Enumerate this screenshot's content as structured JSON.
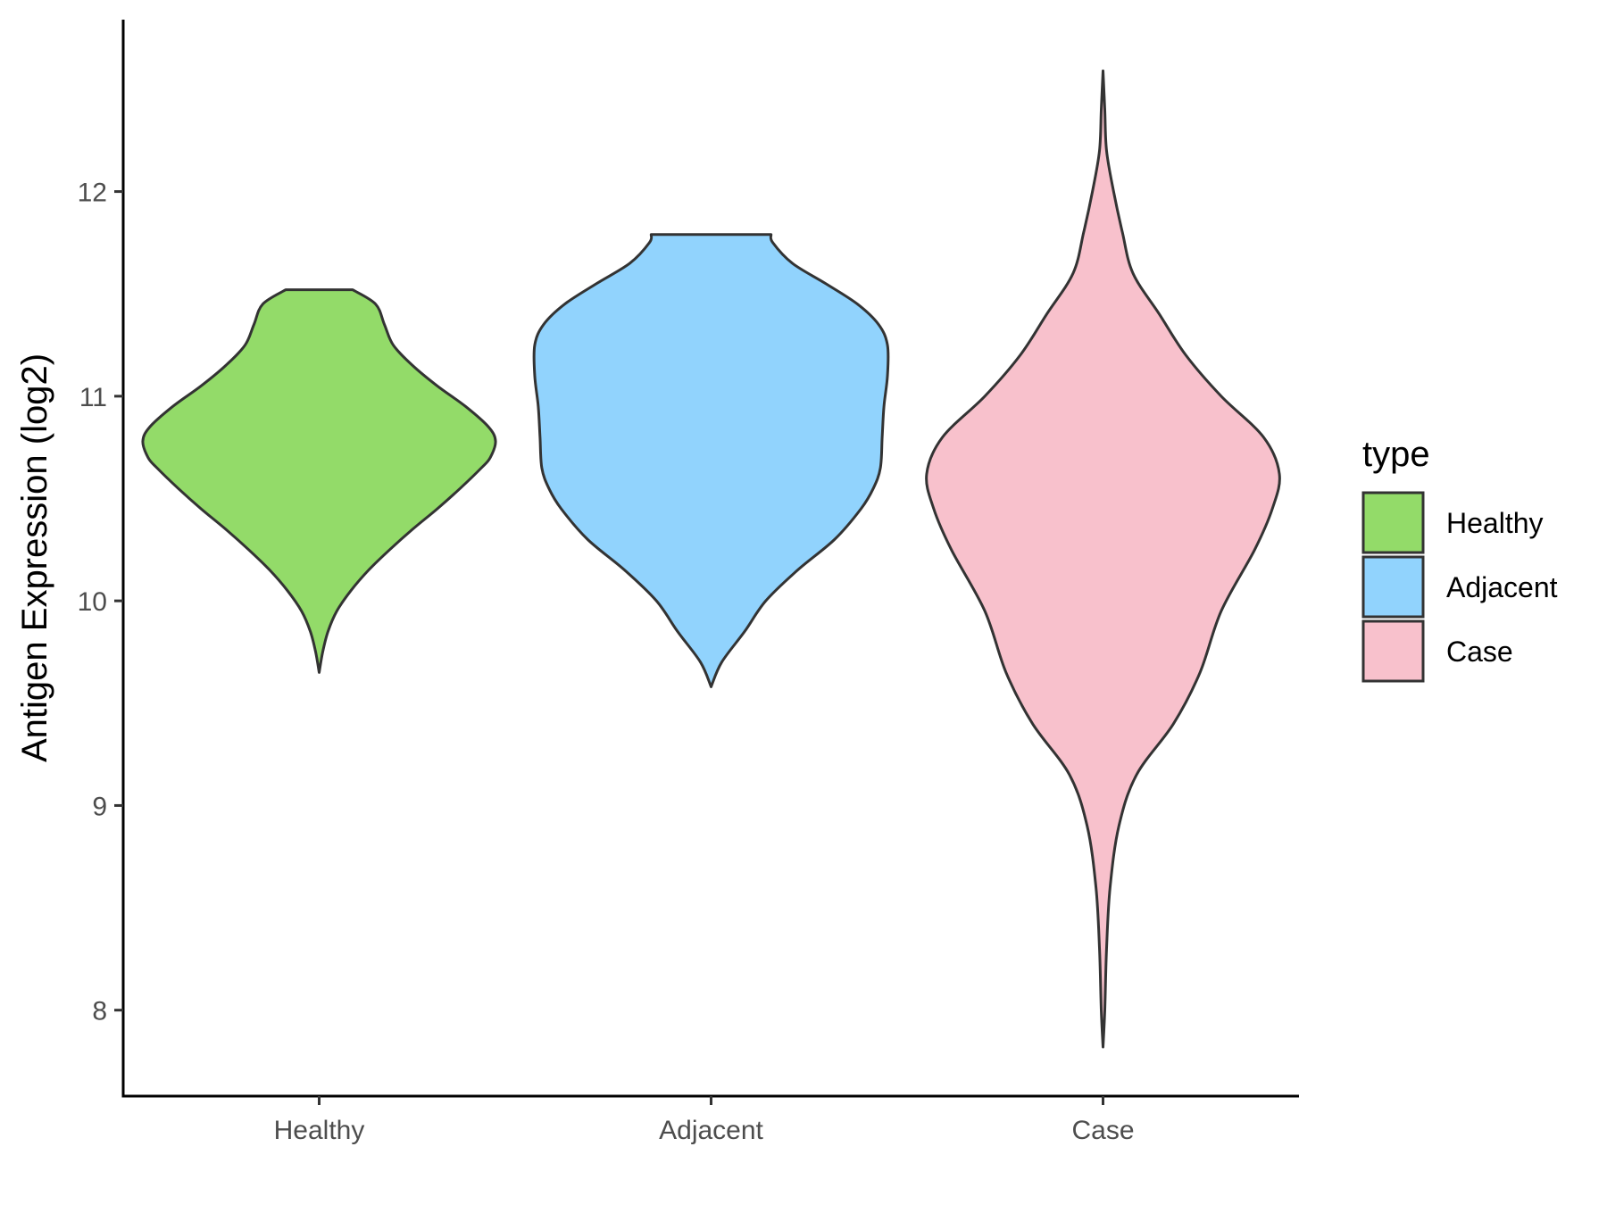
{
  "chart_data": {
    "type": "violin",
    "ylabel": "Antigen Expression (log2)",
    "xlabel": "",
    "categories": [
      "Healthy",
      "Adjacent",
      "Case"
    ],
    "y_ticks": [
      8,
      9,
      10,
      11,
      12
    ],
    "ylim": [
      7.58,
      12.84
    ],
    "grid": false,
    "legend": {
      "title": "type",
      "position": "right",
      "entries": [
        "Healthy",
        "Adjacent",
        "Case"
      ]
    },
    "series": [
      {
        "name": "Healthy",
        "color": "#93db69",
        "min": 9.65,
        "max": 11.52,
        "density": [
          [
            9.65,
            0.0
          ],
          [
            9.75,
            0.02
          ],
          [
            9.85,
            0.05
          ],
          [
            9.95,
            0.1
          ],
          [
            10.05,
            0.18
          ],
          [
            10.15,
            0.28
          ],
          [
            10.25,
            0.4
          ],
          [
            10.35,
            0.53
          ],
          [
            10.45,
            0.67
          ],
          [
            10.55,
            0.8
          ],
          [
            10.65,
            0.92
          ],
          [
            10.7,
            0.97
          ],
          [
            10.78,
            1.0
          ],
          [
            10.85,
            0.96
          ],
          [
            10.95,
            0.83
          ],
          [
            11.05,
            0.67
          ],
          [
            11.15,
            0.53
          ],
          [
            11.25,
            0.42
          ],
          [
            11.35,
            0.37
          ],
          [
            11.45,
            0.32
          ],
          [
            11.52,
            0.19
          ]
        ]
      },
      {
        "name": "Adjacent",
        "color": "#91d3fd",
        "min": 9.58,
        "max": 11.79,
        "density": [
          [
            9.58,
            0.0
          ],
          [
            9.7,
            0.06
          ],
          [
            9.85,
            0.19
          ],
          [
            10.0,
            0.31
          ],
          [
            10.15,
            0.49
          ],
          [
            10.3,
            0.7
          ],
          [
            10.45,
            0.85
          ],
          [
            10.55,
            0.92
          ],
          [
            10.65,
            0.96
          ],
          [
            10.8,
            0.97
          ],
          [
            10.95,
            0.98
          ],
          [
            11.1,
            1.0
          ],
          [
            11.25,
            1.0
          ],
          [
            11.35,
            0.95
          ],
          [
            11.45,
            0.83
          ],
          [
            11.55,
            0.65
          ],
          [
            11.65,
            0.46
          ],
          [
            11.75,
            0.35
          ],
          [
            11.79,
            0.34
          ]
        ]
      },
      {
        "name": "Case",
        "color": "#f8c1cc",
        "min": 7.82,
        "max": 12.59,
        "density": [
          [
            7.82,
            0.0
          ],
          [
            8.0,
            0.01
          ],
          [
            8.3,
            0.02
          ],
          [
            8.6,
            0.04
          ],
          [
            8.9,
            0.09
          ],
          [
            9.15,
            0.19
          ],
          [
            9.4,
            0.4
          ],
          [
            9.65,
            0.55
          ],
          [
            9.95,
            0.67
          ],
          [
            10.25,
            0.86
          ],
          [
            10.45,
            0.96
          ],
          [
            10.62,
            1.0
          ],
          [
            10.8,
            0.91
          ],
          [
            11.0,
            0.67
          ],
          [
            11.2,
            0.47
          ],
          [
            11.4,
            0.32
          ],
          [
            11.6,
            0.17
          ],
          [
            11.8,
            0.11
          ],
          [
            12.0,
            0.06
          ],
          [
            12.2,
            0.02
          ],
          [
            12.4,
            0.01
          ],
          [
            12.59,
            0.0
          ]
        ]
      }
    ]
  }
}
